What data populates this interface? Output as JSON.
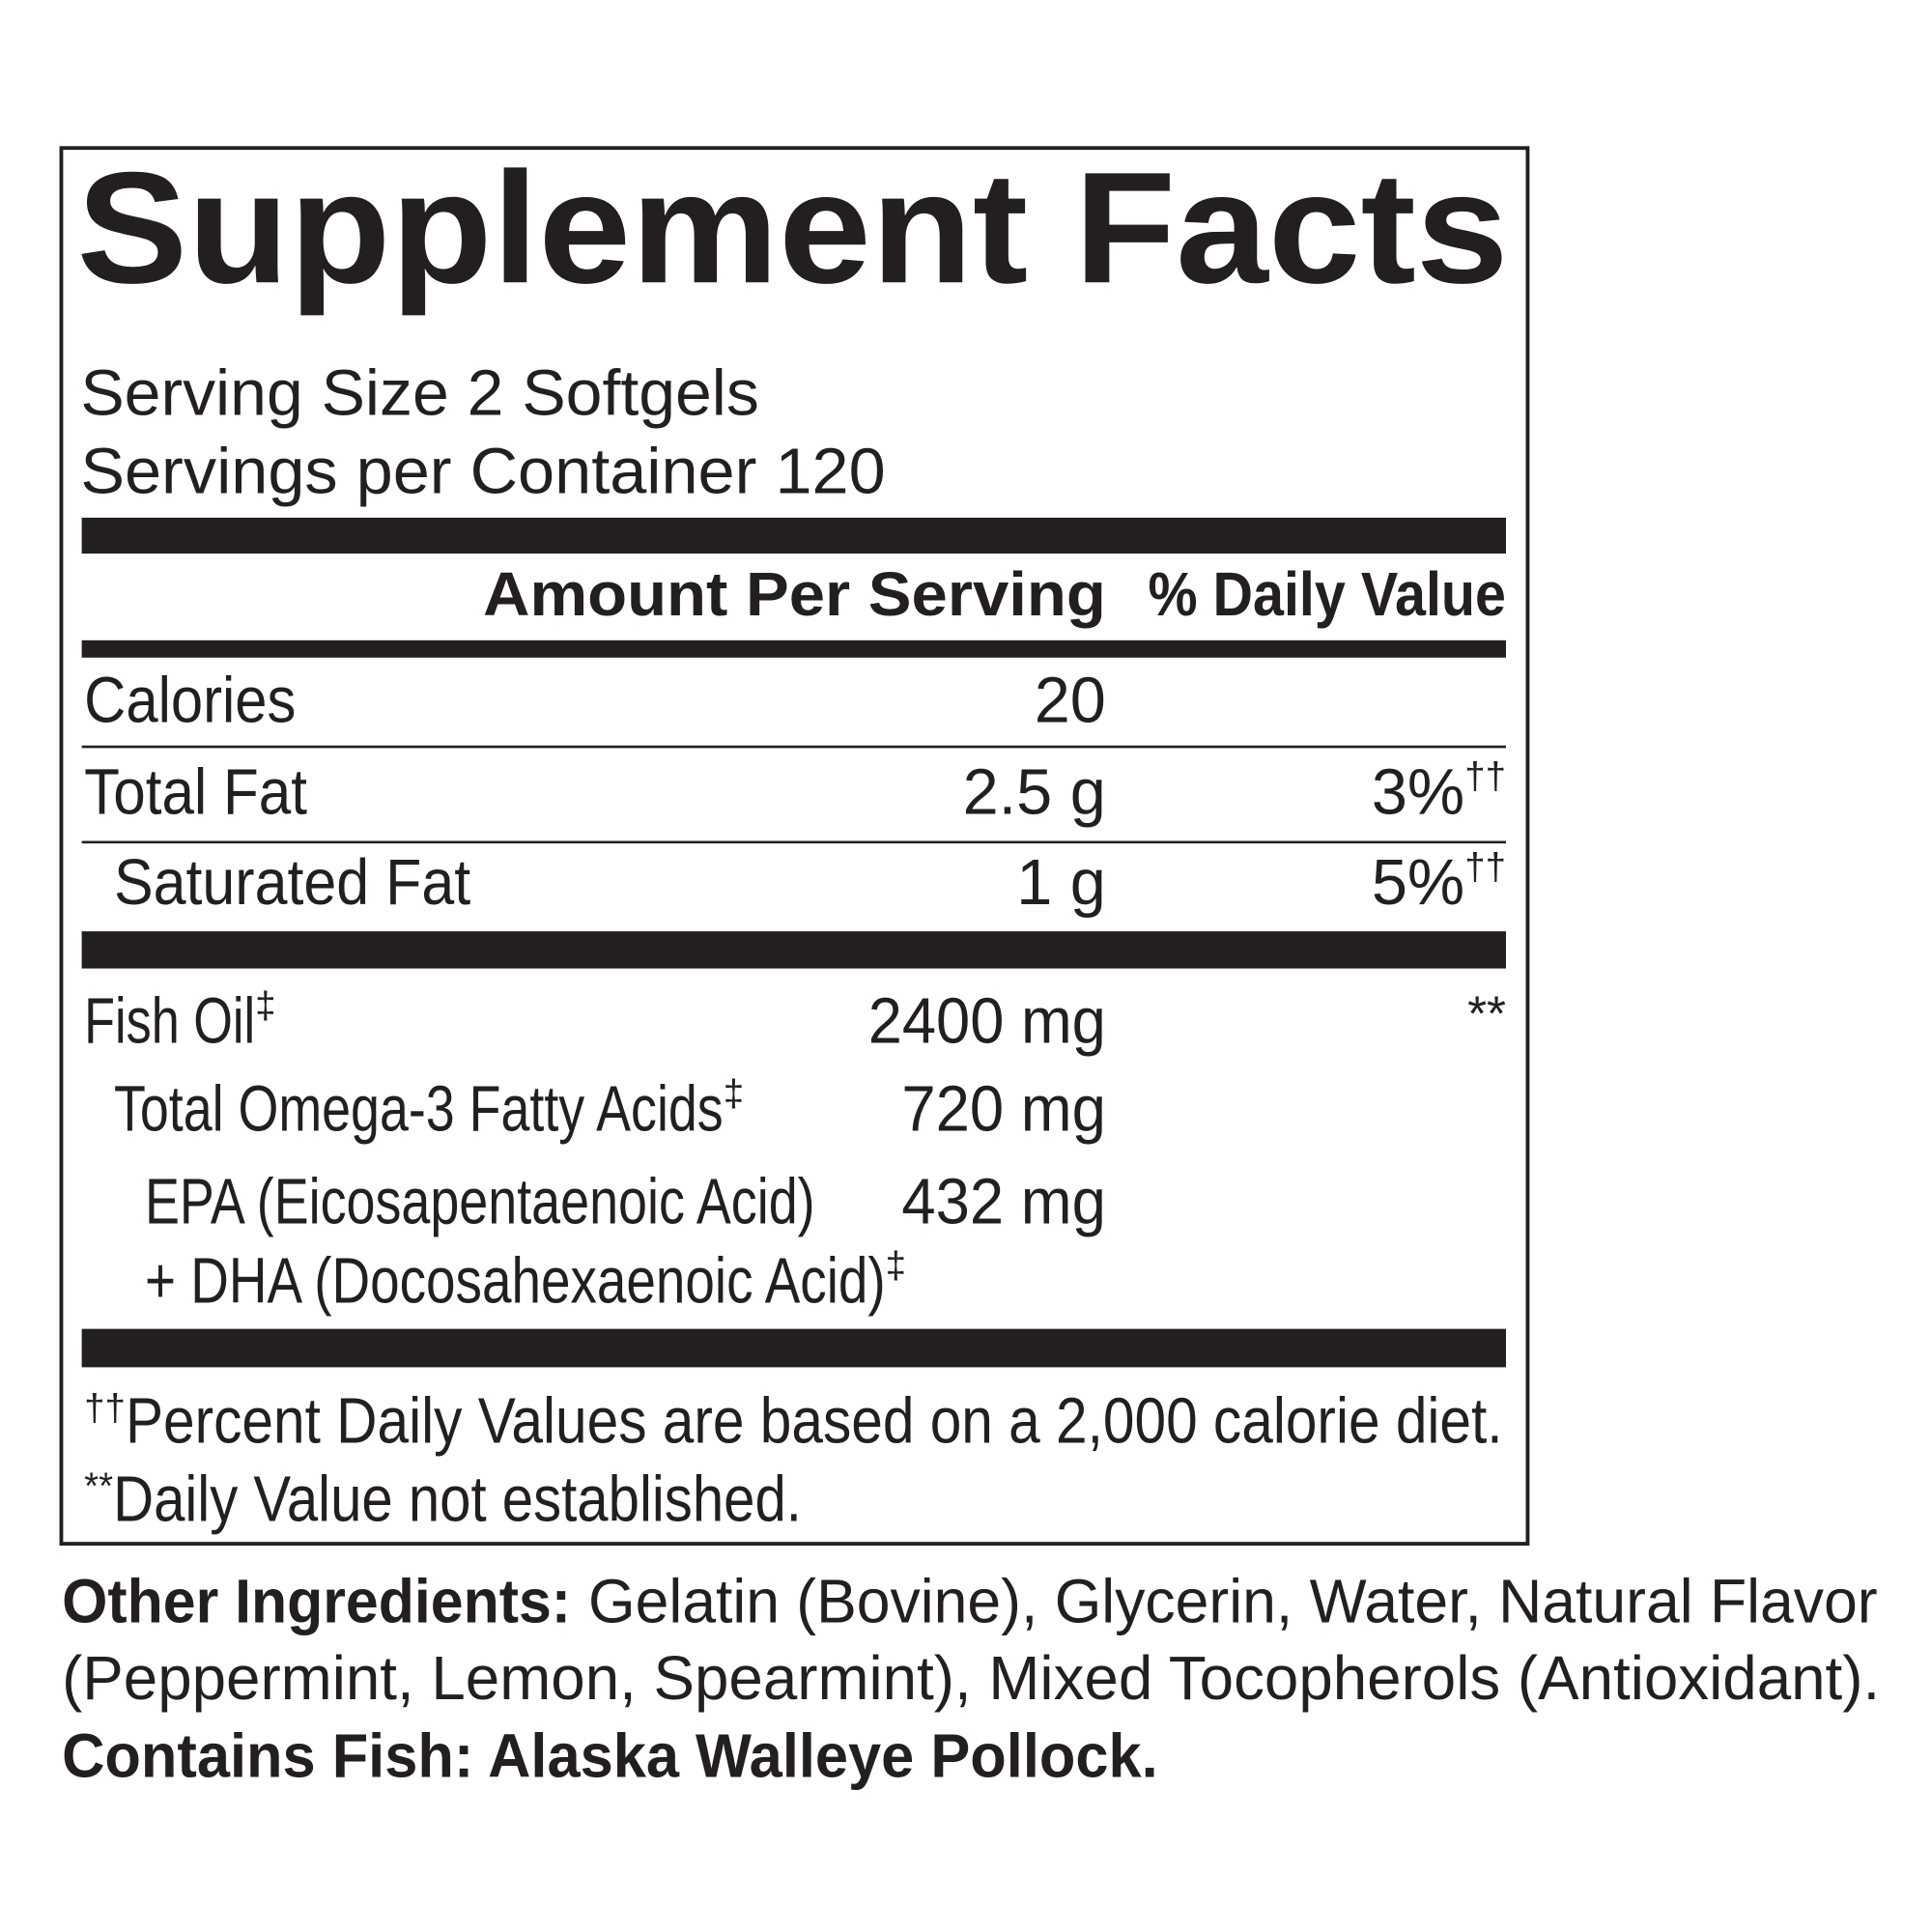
{
  "title": "Supplement Facts",
  "serving_size": "Serving Size 2 Softgels",
  "servings_per_container": "Servings per Container 120",
  "columns": {
    "amount": "Amount Per Serving",
    "daily_value": "% Daily Value"
  },
  "rows": [
    {
      "name": "Calories",
      "amount": "20"
    },
    {
      "name": "Total Fat",
      "amount": "2.5 g",
      "daily_value": "3%",
      "daily_value_mark": "††"
    },
    {
      "name": "Saturated Fat",
      "amount": "1 g",
      "daily_value": "5%",
      "daily_value_mark": "††"
    },
    {
      "name": "Fish Oil",
      "name_mark": "‡",
      "amount": "2400 mg",
      "daily_value": "**"
    },
    {
      "name": "Total Omega-3 Fatty Acids",
      "name_mark": "‡",
      "amount": "720 mg"
    },
    {
      "name_lines": [
        "EPA (Eicosapentaenoic Acid)",
        "+ DHA (Docosahexaenoic Acid)"
      ],
      "name_mark": "‡",
      "amount": "432 mg"
    }
  ],
  "footnotes": [
    {
      "mark": "††",
      "text": "Percent Daily Values are based on a 2,000 calorie diet."
    },
    {
      "mark": "**",
      "text": "Daily Value not established."
    }
  ],
  "other_ingredients": {
    "label": "Other Ingredients:",
    "lines": [
      "Gelatin (Bovine), Glycerin, Water, Natural Flavor",
      "(Peppermint, Lemon, Spearmint), Mixed Tocopherols (Antioxidant)."
    ]
  },
  "allergen": "Contains Fish: Alaska Walleye Pollock."
}
